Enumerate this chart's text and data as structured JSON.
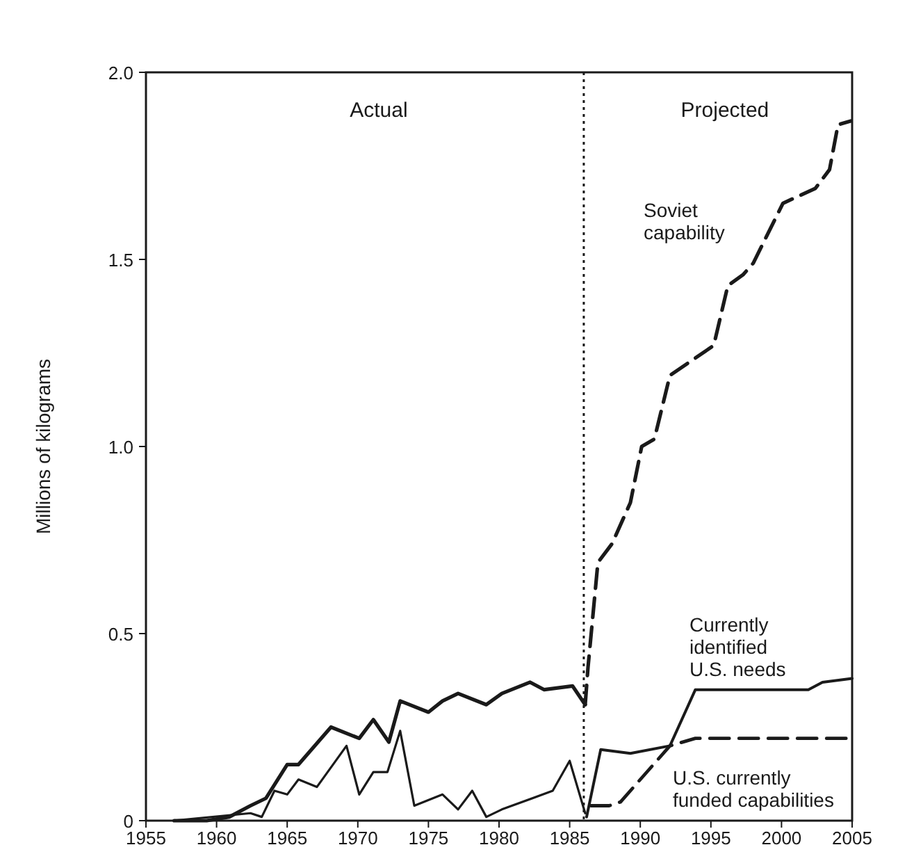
{
  "chart_data": {
    "type": "line",
    "ylabel": "Millions of kilograms",
    "xlim": [
      1955,
      2005
    ],
    "xticks": [
      1955,
      1960,
      1965,
      1970,
      1975,
      1980,
      1985,
      1990,
      1995,
      2000,
      2005
    ],
    "ylim": [
      0,
      2
    ],
    "yticks": [
      0,
      {
        "value": 0.5,
        "label": "0.5"
      },
      {
        "value": 1,
        "label": "1.0"
      },
      {
        "value": 1.5,
        "label": "1.5"
      },
      {
        "value": 2,
        "label": "2.0"
      }
    ],
    "grid": false,
    "marker": "none",
    "ref_lines": [
      {
        "axis": "x",
        "value": 1986,
        "line_style": "dotted",
        "color": "#1a1a1a"
      }
    ],
    "annotations": [
      "Actual",
      "Projected"
    ],
    "series": [
      {
        "color": "#1a1a1a",
        "line_style": "solid",
        "x": [
          1957,
          1959.3,
          1960.9,
          1962.4,
          1963.5,
          1965,
          1965.8,
          1968.1,
          1970.1,
          1971.1,
          1972.2,
          1973,
          1975,
          1976,
          1977.1,
          1979.1,
          1980.2,
          1982.2,
          1983.2,
          1985.2,
          1986.1
        ],
        "values": [
          0,
          0,
          0.01,
          0.04,
          0.06,
          0.15,
          0.15,
          0.25,
          0.22,
          0.27,
          0.21,
          0.32,
          0.29,
          0.32,
          0.34,
          0.31,
          0.34,
          0.37,
          0.35,
          0.36,
          0.31
        ]
      },
      {
        "color": "#1a1a1a",
        "line_style": "solid",
        "x": [
          1957,
          1962.4,
          1963.2,
          1964.1,
          1965,
          1965.8,
          1967.1,
          1969.2,
          1970.1,
          1971.1,
          1972.1,
          1973,
          1974,
          1976,
          1977.1,
          1978.1,
          1979.1,
          1980.2,
          1983.8,
          1985,
          1986.1
        ],
        "values": [
          0,
          0.02,
          0.01,
          0.08,
          0.07,
          0.11,
          0.09,
          0.2,
          0.07,
          0.13,
          0.13,
          0.24,
          0.04,
          0.07,
          0.03,
          0.08,
          0.01,
          0.03,
          0.08,
          0.16,
          0.02
        ]
      },
      {
        "name": "Soviet capability",
        "color": "#1a1a1a",
        "line_style": "dashed",
        "x": [
          1986.1,
          1986.3,
          1987,
          1988,
          1989.3,
          1990.1,
          1991,
          1992.1,
          1995.2,
          1996.2,
          1997.3,
          1998,
          2000.1,
          2002.4,
          2003.4,
          2004,
          2004.9
        ],
        "values": [
          0.31,
          0.41,
          0.69,
          0.74,
          0.85,
          1,
          1.02,
          1.19,
          1.27,
          1.43,
          1.46,
          1.49,
          1.65,
          1.69,
          1.74,
          1.86,
          1.87
        ]
      },
      {
        "name": "Currently identified U.S. needs",
        "color": "#1a1a1a",
        "line_style": "solid",
        "x": [
          1986.2,
          1987.2,
          1989.3,
          1992.1,
          1993.9,
          2000.1,
          2001.9,
          2002.9,
          2005
        ],
        "values": [
          0.01,
          0.19,
          0.18,
          0.2,
          0.35,
          0.35,
          0.35,
          0.37,
          0.38
        ]
      },
      {
        "name": "U.S. currently funded capabilities",
        "color": "#1a1a1a",
        "line_style": "dashed",
        "x": [
          1986.5,
          1987.8,
          1988.6,
          1992.1,
          1993.9,
          2005
        ],
        "values": [
          0.04,
          0.04,
          0.05,
          0.2,
          0.22,
          0.22
        ]
      }
    ]
  }
}
